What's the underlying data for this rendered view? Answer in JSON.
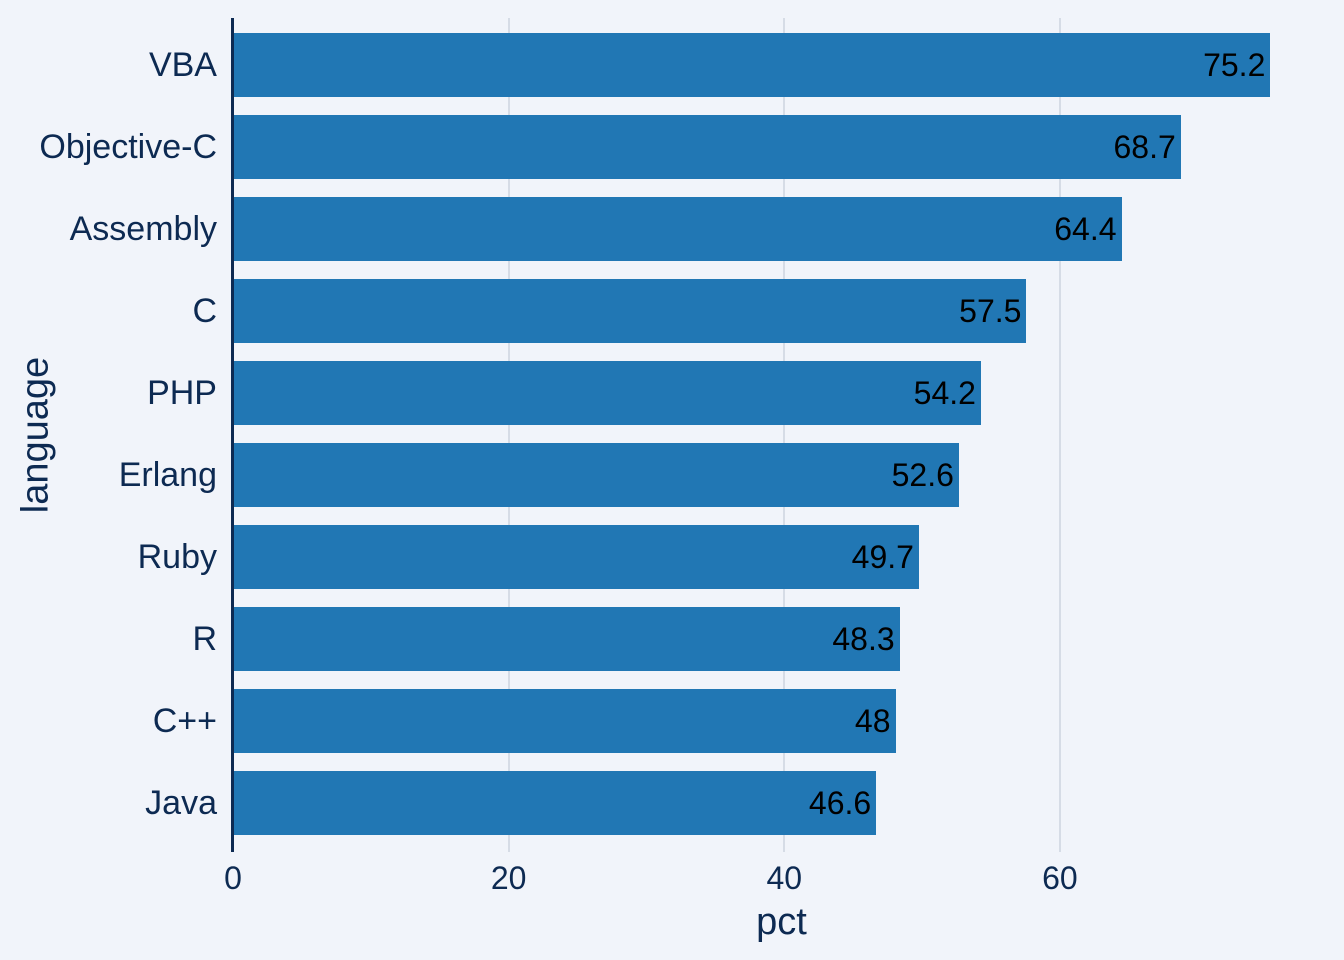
{
  "chart_data": {
    "type": "bar",
    "orientation": "horizontal",
    "title": "",
    "xlabel": "pct",
    "ylabel": "language",
    "categories": [
      "VBA",
      "Objective-C",
      "Assembly",
      "C",
      "PHP",
      "Erlang",
      "Ruby",
      "R",
      "C++",
      "Java"
    ],
    "values": [
      75.2,
      68.7,
      64.4,
      57.5,
      54.2,
      52.6,
      49.7,
      48.3,
      48,
      46.6
    ],
    "value_labels": [
      "75.2",
      "68.7",
      "64.4",
      "57.5",
      "54.2",
      "52.6",
      "49.7",
      "48.3",
      "48",
      "46.6"
    ],
    "x_ticks": [
      0,
      20,
      40,
      60
    ],
    "x_tick_labels": [
      "0",
      "20",
      "40",
      "60"
    ],
    "xlim": [
      0,
      79.6
    ],
    "grid": true,
    "legend": "none",
    "colors": {
      "bar": "#2177b4",
      "background": "#f1f4fa",
      "gridline": "#d6dce6",
      "axis_line": "#0d2a52",
      "axis_text": "#0d2a52",
      "value_text": "#000000"
    }
  }
}
